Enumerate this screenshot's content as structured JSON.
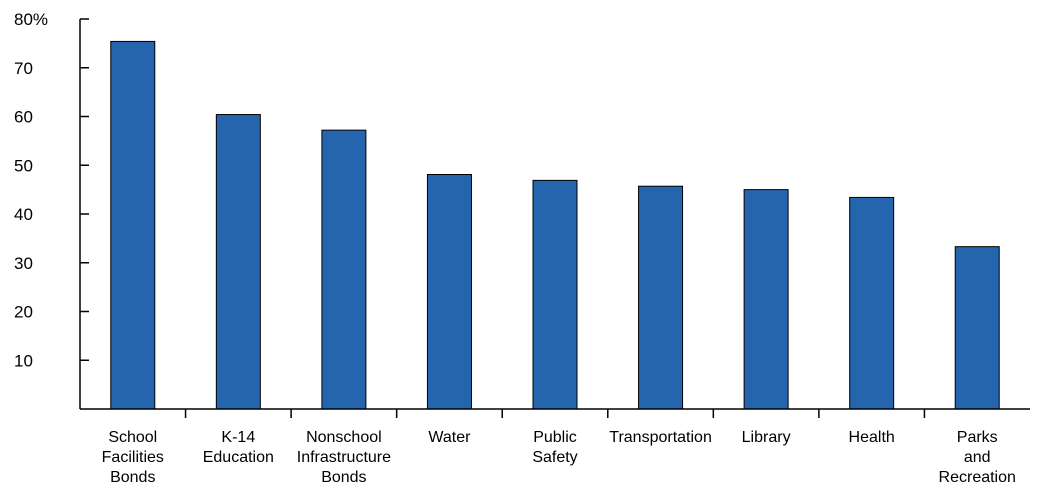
{
  "chart_data": {
    "type": "bar",
    "categories": [
      [
        "School",
        "Facilities",
        "Bonds"
      ],
      [
        "K-14",
        "Education"
      ],
      [
        "Nonschool",
        "Infrastructure",
        "Bonds"
      ],
      [
        "Water"
      ],
      [
        "Public",
        "Safety"
      ],
      [
        "Transportation"
      ],
      [
        "Library"
      ],
      [
        "Health"
      ],
      [
        "Parks",
        "and",
        "Recreation"
      ]
    ],
    "values": [
      75.4,
      60.4,
      57.2,
      48.1,
      46.9,
      45.7,
      45.0,
      43.4,
      33.3
    ],
    "ylim": [
      0,
      80
    ],
    "yticks": [
      10,
      20,
      30,
      40,
      50,
      60,
      70,
      80
    ],
    "ytick_labels": [
      "10",
      "20",
      "30",
      "40",
      "50",
      "60",
      "70",
      "80%"
    ],
    "bar_color": "#2565ae",
    "grid": false,
    "title": "",
    "xlabel": "",
    "ylabel": ""
  }
}
